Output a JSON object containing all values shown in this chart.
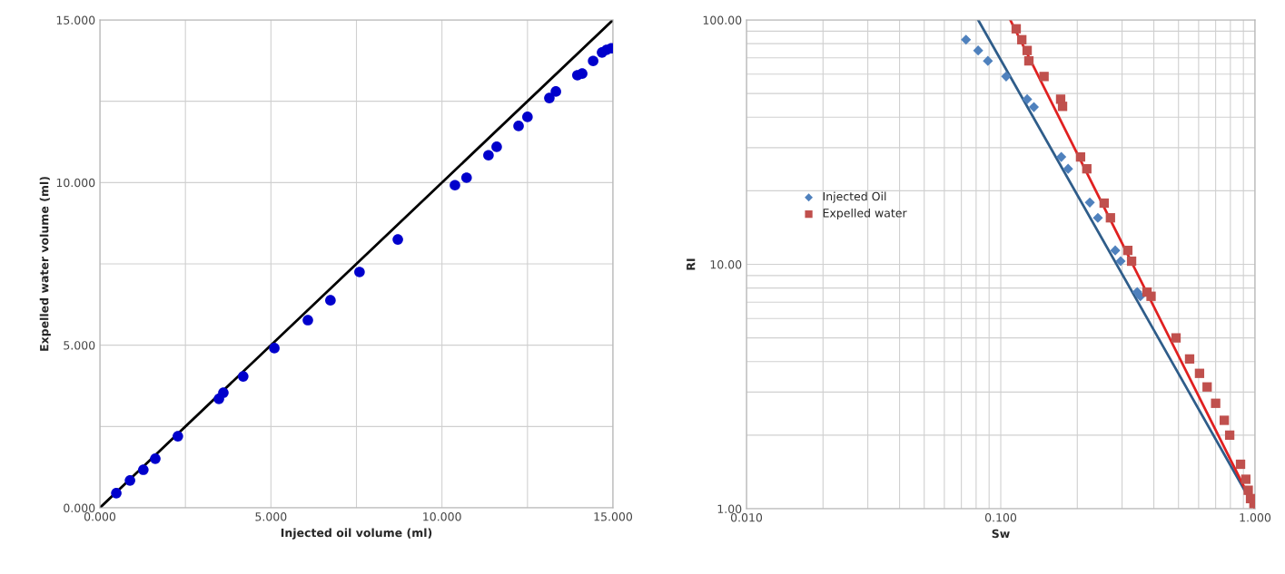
{
  "chart_data": [
    {
      "type": "scatter",
      "xlabel": "Injected oil volume (ml)",
      "ylabel": "Expelled water volume (ml)",
      "xlim": [
        0,
        15
      ],
      "ylim": [
        0,
        15
      ],
      "xticks": [
        {
          "value": 0,
          "label": "0.000"
        },
        {
          "value": 2.5,
          "label": null
        },
        {
          "value": 5,
          "label": "5.000"
        },
        {
          "value": 7.5,
          "label": null
        },
        {
          "value": 10,
          "label": "10.000"
        },
        {
          "value": 12.5,
          "label": null
        },
        {
          "value": 15,
          "label": "15.000"
        }
      ],
      "yticks": [
        {
          "value": 0,
          "label": "0.000"
        },
        {
          "value": 2.5,
          "label": null
        },
        {
          "value": 5,
          "label": "5.000"
        },
        {
          "value": 7.5,
          "label": null
        },
        {
          "value": 10,
          "label": "10.000"
        },
        {
          "value": 12.5,
          "label": null
        },
        {
          "value": 15,
          "label": "15.000"
        }
      ],
      "grid": true,
      "legend": false,
      "series": [
        {
          "type": "scatter",
          "marker": "circle",
          "color": "#0000cc",
          "x": [
            0.48,
            0.88,
            1.27,
            1.62,
            2.28,
            3.48,
            3.61,
            4.19,
            5.1,
            6.08,
            6.74,
            7.59,
            8.71,
            10.38,
            10.72,
            11.36,
            11.6,
            12.24,
            12.5,
            13.14,
            13.33,
            13.96,
            14.1,
            14.42,
            14.68,
            14.81,
            14.95
          ],
          "values": [
            0.45,
            0.84,
            1.17,
            1.51,
            2.2,
            3.35,
            3.54,
            4.04,
            4.91,
            5.77,
            6.38,
            7.25,
            8.25,
            9.92,
            10.15,
            10.84,
            11.1,
            11.74,
            12.02,
            12.6,
            12.8,
            13.3,
            13.35,
            13.74,
            14.0,
            14.08,
            14.13
          ]
        },
        {
          "type": "line",
          "marker": "none",
          "color": "#000000",
          "x": [
            0,
            15
          ],
          "values": [
            0,
            15
          ]
        }
      ]
    },
    {
      "type": "scatter",
      "xlabel": "Sw",
      "ylabel": "RI",
      "log": "xy",
      "xlim": [
        0.01,
        1
      ],
      "ylim": [
        1,
        100
      ],
      "xticks": [
        {
          "value": 0.01,
          "label": "0.010"
        },
        {
          "value": 0.02,
          "label": null
        },
        {
          "value": 0.03,
          "label": null
        },
        {
          "value": 0.04,
          "label": null
        },
        {
          "value": 0.05,
          "label": null
        },
        {
          "value": 0.06,
          "label": null
        },
        {
          "value": 0.07,
          "label": null
        },
        {
          "value": 0.08,
          "label": null
        },
        {
          "value": 0.09,
          "label": null
        },
        {
          "value": 0.1,
          "label": "0.100"
        },
        {
          "value": 0.2,
          "label": null
        },
        {
          "value": 0.3,
          "label": null
        },
        {
          "value": 0.4,
          "label": null
        },
        {
          "value": 0.5,
          "label": null
        },
        {
          "value": 0.6,
          "label": null
        },
        {
          "value": 0.7,
          "label": null
        },
        {
          "value": 0.8,
          "label": null
        },
        {
          "value": 0.9,
          "label": null
        },
        {
          "value": 1,
          "label": "1.000"
        }
      ],
      "yticks": [
        {
          "value": 1,
          "label": "1.00"
        },
        {
          "value": 2,
          "label": null
        },
        {
          "value": 3,
          "label": null
        },
        {
          "value": 4,
          "label": null
        },
        {
          "value": 5,
          "label": null
        },
        {
          "value": 6,
          "label": null
        },
        {
          "value": 7,
          "label": null
        },
        {
          "value": 8,
          "label": null
        },
        {
          "value": 9,
          "label": null
        },
        {
          "value": 10,
          "label": "10.00"
        },
        {
          "value": 20,
          "label": null
        },
        {
          "value": 30,
          "label": null
        },
        {
          "value": 40,
          "label": null
        },
        {
          "value": 50,
          "label": null
        },
        {
          "value": 60,
          "label": null
        },
        {
          "value": 70,
          "label": null
        },
        {
          "value": 80,
          "label": null
        },
        {
          "value": 90,
          "label": null
        },
        {
          "value": 100,
          "label": "100.00"
        }
      ],
      "grid": true,
      "legend": "left",
      "series": [
        {
          "type": "scatter",
          "name": "Injected Oil",
          "marker": "diamond",
          "color": "#4f81bd",
          "x": [
            0.073,
            0.0815,
            0.089,
            0.105,
            0.127,
            0.135,
            0.173,
            0.184,
            0.224,
            0.241,
            0.282,
            0.296,
            0.344,
            0.354
          ],
          "values": [
            83,
            75,
            68,
            58.7,
            47.4,
            44,
            27.5,
            24.6,
            17.9,
            15.5,
            11.4,
            10.3,
            7.7,
            7.4
          ]
        },
        {
          "type": "scatter",
          "name": "Expelled water",
          "marker": "square",
          "color": "#c0504d",
          "x": [
            0.115,
            0.121,
            0.127,
            0.129,
            0.148,
            0.172,
            0.175,
            0.206,
            0.218,
            0.255,
            0.27,
            0.316,
            0.327,
            0.376,
            0.39,
            0.489,
            0.553,
            0.605,
            0.648,
            0.7,
            0.757,
            0.795,
            0.877,
            0.92,
            0.94,
            0.96,
            0.99
          ],
          "values": [
            92,
            83,
            75,
            68,
            58.7,
            47.4,
            44.3,
            27.5,
            24.6,
            17.8,
            15.5,
            11.4,
            10.3,
            7.7,
            7.4,
            5.0,
            4.1,
            3.58,
            3.15,
            2.7,
            2.3,
            2.0,
            1.52,
            1.32,
            1.19,
            1.1,
            1.05
          ]
        },
        {
          "type": "line",
          "marker": "none",
          "color": "#2f5d8a",
          "x": [
            0.0815,
            1
          ],
          "values": [
            100,
            1
          ]
        },
        {
          "type": "line",
          "marker": "none",
          "color": "#e02020",
          "x": [
            0.109,
            1
          ],
          "values": [
            100,
            1
          ]
        }
      ]
    }
  ]
}
